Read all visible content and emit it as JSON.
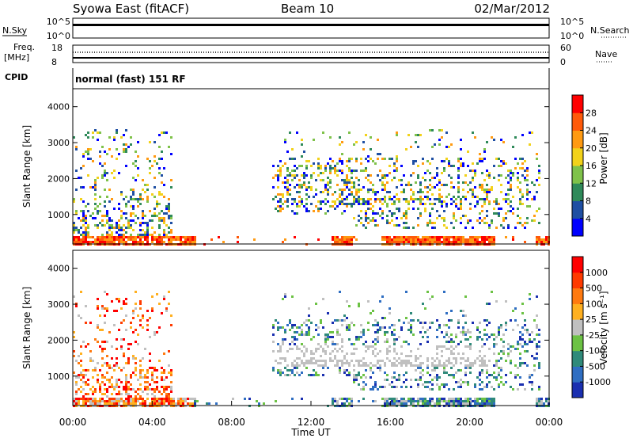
{
  "header": {
    "title": "Syowa East (fitACF)",
    "beam": "Beam 10",
    "date": "02/Mar/2012"
  },
  "status_panels": {
    "nsky": {
      "left_label": "N.Sky",
      "right_label": "N.Search",
      "left_ticks": [
        "10^5",
        "10^0"
      ],
      "right_ticks": [
        "10^5",
        "10^0"
      ]
    },
    "freq": {
      "left_label_1": "Freq.",
      "left_label_2": "[MHz]",
      "right_label": "Nave",
      "left_ticks": [
        "18",
        "8"
      ],
      "right_ticks": [
        "60",
        "0"
      ]
    },
    "cpid": {
      "label": "CPID",
      "value": "normal (fast) 151 RF"
    }
  },
  "chart_data": [
    {
      "type": "heatmap",
      "name": "power",
      "ylabel": "Slant Range [km]",
      "ylim": [
        180,
        4500
      ],
      "yticks": [
        1000,
        2000,
        3000,
        4000
      ],
      "colorbar": {
        "label": "Power [dB]",
        "ticks": [
          "4",
          "8",
          "12",
          "16",
          "20",
          "24",
          "28"
        ],
        "colors": [
          "#0000ff",
          "#1f4fa3",
          "#2f8a5a",
          "#7fc24a",
          "#f2d21a",
          "#ff9a12",
          "#ff5a0a",
          "#ff0000"
        ]
      }
    },
    {
      "type": "heatmap",
      "name": "velocity",
      "ylabel": "Slant Range [km]",
      "ylim": [
        180,
        4500
      ],
      "yticks": [
        1000,
        2000,
        3000,
        4000
      ],
      "xlabel": "Time UT",
      "xticks": [
        "00:00",
        "04:00",
        "08:00",
        "12:00",
        "16:00",
        "20:00",
        "00:00"
      ],
      "colorbar": {
        "label": "Velocity [m s⁻¹]",
        "ticks": [
          "1000",
          "500",
          "100",
          "25",
          "-25",
          "-100",
          "-500",
          "-1000"
        ],
        "colors": [
          "#1a2fb0",
          "#2f6ec2",
          "#2f8a7a",
          "#6cc244",
          "#c0c0c0",
          "#ffb020",
          "#ff7a10",
          "#ff3a00",
          "#ff0000"
        ]
      }
    }
  ]
}
